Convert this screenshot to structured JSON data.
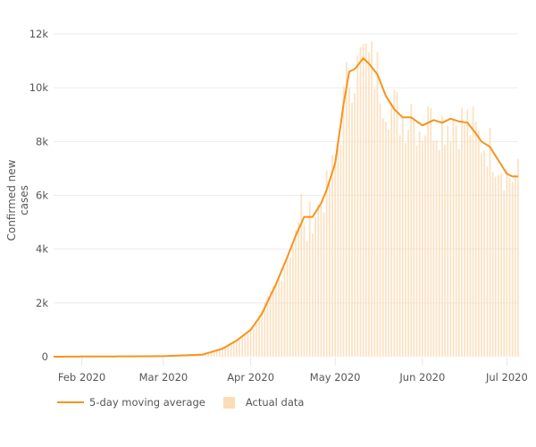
{
  "chart_data": {
    "type": "bar+line",
    "title": "",
    "ylabel": "Confirmed new cases",
    "xlabel": "",
    "ylim": [
      0,
      12000
    ],
    "yticks": [
      0,
      2000,
      4000,
      6000,
      8000,
      10000,
      12000
    ],
    "ytick_labels": [
      "0",
      "2k",
      "4k",
      "6k",
      "8k",
      "10k",
      "12k"
    ],
    "xtick_labels": [
      "Feb 2020",
      "Mar 2020",
      "Apr 2020",
      "May 2020",
      "Jun 2020",
      "Jul 2020"
    ],
    "x_start": "2020-01-22",
    "x_end": "2020-07-05",
    "grid": true,
    "legend_position": "bottom-left",
    "series": [
      {
        "name": "5-day moving average",
        "type": "line",
        "color": "#f7931e"
      },
      {
        "name": "Actual data",
        "type": "bar",
        "color": "#fbdcb6"
      }
    ],
    "keypoints_moving_average": [
      {
        "date": "2020-01-22",
        "value": 0
      },
      {
        "date": "2020-03-01",
        "value": 20
      },
      {
        "date": "2020-03-15",
        "value": 80
      },
      {
        "date": "2020-03-22",
        "value": 300
      },
      {
        "date": "2020-03-27",
        "value": 600
      },
      {
        "date": "2020-04-01",
        "value": 1000
      },
      {
        "date": "2020-04-05",
        "value": 1600
      },
      {
        "date": "2020-04-10",
        "value": 2700
      },
      {
        "date": "2020-04-14",
        "value": 3700
      },
      {
        "date": "2020-04-17",
        "value": 4500
      },
      {
        "date": "2020-04-20",
        "value": 5200
      },
      {
        "date": "2020-04-23",
        "value": 5200
      },
      {
        "date": "2020-04-26",
        "value": 5700
      },
      {
        "date": "2020-04-28",
        "value": 6200
      },
      {
        "date": "2020-05-01",
        "value": 7200
      },
      {
        "date": "2020-05-04",
        "value": 9400
      },
      {
        "date": "2020-05-06",
        "value": 10600
      },
      {
        "date": "2020-05-08",
        "value": 10700
      },
      {
        "date": "2020-05-11",
        "value": 11100
      },
      {
        "date": "2020-05-13",
        "value": 10900
      },
      {
        "date": "2020-05-16",
        "value": 10500
      },
      {
        "date": "2020-05-19",
        "value": 9700
      },
      {
        "date": "2020-05-22",
        "value": 9200
      },
      {
        "date": "2020-05-25",
        "value": 8900
      },
      {
        "date": "2020-05-28",
        "value": 8900
      },
      {
        "date": "2020-06-01",
        "value": 8600
      },
      {
        "date": "2020-06-05",
        "value": 8800
      },
      {
        "date": "2020-06-08",
        "value": 8700
      },
      {
        "date": "2020-06-11",
        "value": 8850
      },
      {
        "date": "2020-06-14",
        "value": 8750
      },
      {
        "date": "2020-06-17",
        "value": 8700
      },
      {
        "date": "2020-06-20",
        "value": 8300
      },
      {
        "date": "2020-06-22",
        "value": 8000
      },
      {
        "date": "2020-06-25",
        "value": 7800
      },
      {
        "date": "2020-06-28",
        "value": 7300
      },
      {
        "date": "2020-07-01",
        "value": 6800
      },
      {
        "date": "2020-07-03",
        "value": 6700
      },
      {
        "date": "2020-07-05",
        "value": 6700
      }
    ],
    "notable_actual_bars": [
      {
        "date": "2020-04-19",
        "value": 6050
      },
      {
        "date": "2020-04-21",
        "value": 4300
      },
      {
        "date": "2020-05-12",
        "value": 11650
      },
      {
        "date": "2020-05-09",
        "value": 11200
      },
      {
        "date": "2020-05-28",
        "value": 9400
      },
      {
        "date": "2020-06-04",
        "value": 9250
      }
    ]
  },
  "legend": {
    "line_label": "5-day moving average",
    "bar_label": "Actual data"
  },
  "axis": {
    "ylabel": "Confirmed new cases"
  }
}
